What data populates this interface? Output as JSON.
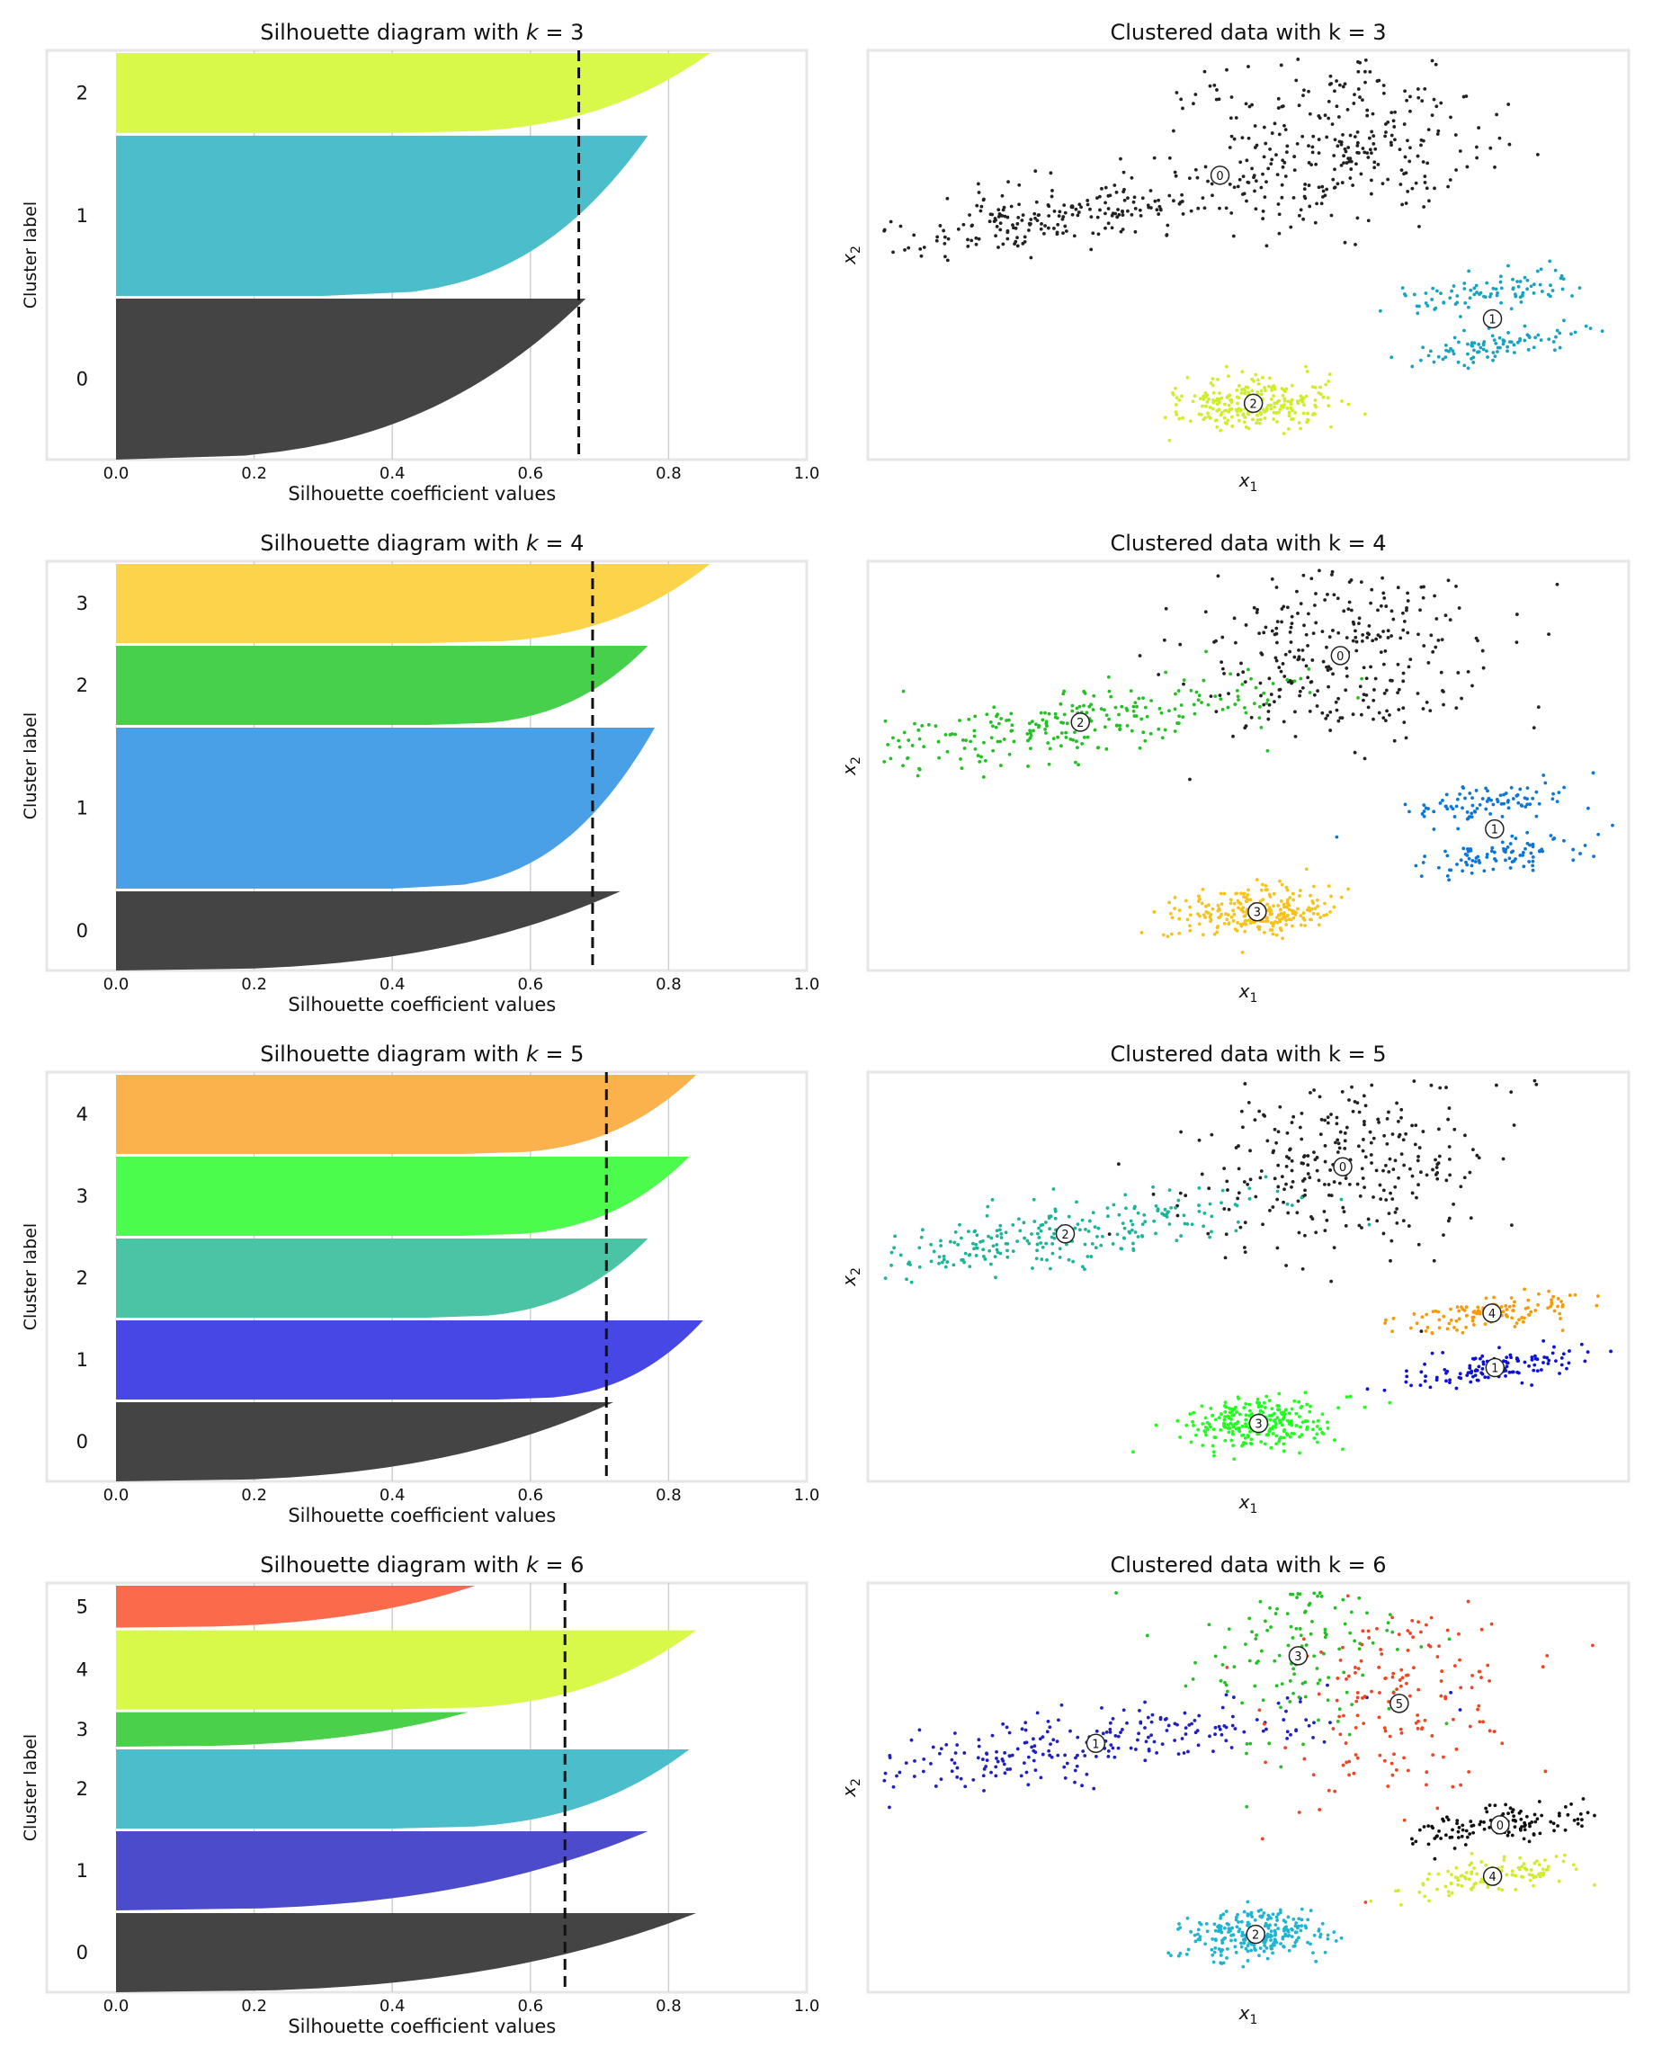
{
  "chart_data": [
    {
      "type": "area",
      "panel": "silhouette",
      "title": "Silhouette diagram with k = 3",
      "title_prefix": "Silhouette diagram with ",
      "title_k": "k",
      "title_suffix": " = 3",
      "xlabel": "Silhouette coefficient values",
      "ylabel": "Cluster label",
      "xlim": [
        -0.1,
        1.0
      ],
      "xticks": [
        0.0,
        0.2,
        0.4,
        0.6,
        0.8,
        1.0
      ],
      "xtick_labels": [
        "0.0",
        "0.2",
        "0.4",
        "0.6",
        "0.8",
        "1.0"
      ],
      "grid": true,
      "mean_silhouette": 0.67,
      "clusters": [
        {
          "label": "0",
          "size": 0.4,
          "max": 0.68,
          "min": 0.0,
          "color": "#444444"
        },
        {
          "label": "1",
          "size": 0.398,
          "max": 0.77,
          "min": 0.3,
          "color": "#4bbdcb"
        },
        {
          "label": "2",
          "size": 0.202,
          "max": 0.86,
          "min": 0.4,
          "color": "#d8f84a"
        }
      ]
    },
    {
      "type": "scatter",
      "panel": "clusters",
      "title": "Clustered data with k = 3",
      "xlabel": "x1",
      "ylabel": "x2",
      "xlabel_main": "x",
      "xlabel_sub": "1",
      "ylabel_main": "x",
      "ylabel_sub": "2",
      "xlim": [
        0,
        1
      ],
      "ylim": [
        0,
        1
      ],
      "groups": [
        {
          "label": "0",
          "color": "#222222",
          "blobs": [
            [
              0.25,
              0.6,
              0.4,
              0.04,
              0.16,
              0.03,
              260
            ],
            [
              0.62,
              0.78,
              0.27,
              0.12,
              0.1,
              0.05,
              300
            ]
          ]
        },
        {
          "label": "1",
          "color": "#17a2c2",
          "blobs": [
            [
              0.81,
              0.41,
              0.39,
              0.02,
              0.06,
              0.02,
              90
            ],
            [
              0.83,
              0.28,
              0.39,
              0.02,
              0.06,
              0.02,
              90
            ]
          ]
        },
        {
          "label": "2",
          "color": "#cfee2a",
          "blobs": [
            [
              0.51,
              0.14,
              0.14,
              0.03,
              0.05,
              0.03,
              260
            ]
          ]
        }
      ]
    },
    {
      "type": "area",
      "panel": "silhouette",
      "title": "Silhouette diagram with k = 4",
      "title_prefix": "Silhouette diagram with ",
      "title_k": "k",
      "title_suffix": " = 4",
      "xlabel": "Silhouette coefficient values",
      "ylabel": "Cluster label",
      "xlim": [
        -0.1,
        1.0
      ],
      "xticks": [
        0.0,
        0.2,
        0.4,
        0.6,
        0.8,
        1.0
      ],
      "xtick_labels": [
        "0.0",
        "0.2",
        "0.4",
        "0.6",
        "0.8",
        "1.0"
      ],
      "grid": true,
      "mean_silhouette": 0.69,
      "clusters": [
        {
          "label": "0",
          "size": 0.2,
          "max": 0.73,
          "min": 0.0,
          "color": "#444444"
        },
        {
          "label": "1",
          "size": 0.4,
          "max": 0.78,
          "min": 0.4,
          "color": "#4aa0e6"
        },
        {
          "label": "2",
          "size": 0.2,
          "max": 0.77,
          "min": 0.45,
          "color": "#46d04b"
        },
        {
          "label": "3",
          "size": 0.2,
          "max": 0.86,
          "min": 0.45,
          "color": "#fcd44c"
        }
      ]
    },
    {
      "type": "scatter",
      "panel": "clusters",
      "title": "Clustered data with k = 4",
      "xlabel": "x1",
      "ylabel": "x2",
      "xlabel_main": "x",
      "xlabel_sub": "1",
      "ylabel_main": "x",
      "ylabel_sub": "2",
      "xlim": [
        0,
        1
      ],
      "ylim": [
        0,
        1
      ],
      "groups": [
        {
          "label": "0",
          "color": "#222222",
          "blobs": [
            [
              0.62,
              0.78,
              0.27,
              0.12,
              0.1,
              0.05,
              300
            ]
          ]
        },
        {
          "label": "1",
          "color": "#0a76d8",
          "blobs": [
            [
              0.81,
              0.41,
              0.39,
              0.02,
              0.06,
              0.02,
              90
            ],
            [
              0.83,
              0.28,
              0.39,
              0.02,
              0.06,
              0.02,
              90
            ]
          ]
        },
        {
          "label": "2",
          "color": "#23c023",
          "blobs": [
            [
              0.25,
              0.6,
              0.4,
              0.04,
              0.16,
              0.03,
              260
            ]
          ]
        },
        {
          "label": "3",
          "color": "#f7c21d",
          "blobs": [
            [
              0.51,
              0.14,
              0.14,
              0.03,
              0.05,
              0.03,
              260
            ]
          ]
        }
      ]
    },
    {
      "type": "area",
      "panel": "silhouette",
      "title": "Silhouette diagram with k = 5",
      "title_prefix": "Silhouette diagram with ",
      "title_k": "k",
      "title_suffix": " = 5",
      "xlabel": "Silhouette coefficient values",
      "ylabel": "Cluster label",
      "xlim": [
        -0.1,
        1.0
      ],
      "xticks": [
        0.0,
        0.2,
        0.4,
        0.6,
        0.8,
        1.0
      ],
      "xtick_labels": [
        "0.0",
        "0.2",
        "0.4",
        "0.6",
        "0.8",
        "1.0"
      ],
      "grid": true,
      "mean_silhouette": 0.71,
      "clusters": [
        {
          "label": "0",
          "size": 0.2,
          "max": 0.72,
          "min": 0.0,
          "color": "#444444"
        },
        {
          "label": "1",
          "size": 0.2,
          "max": 0.85,
          "min": 0.55,
          "color": "#4747e6"
        },
        {
          "label": "2",
          "size": 0.2,
          "max": 0.77,
          "min": 0.45,
          "color": "#4bc4a5"
        },
        {
          "label": "3",
          "size": 0.2,
          "max": 0.83,
          "min": 0.5,
          "color": "#4cfc4c"
        },
        {
          "label": "4",
          "size": 0.2,
          "max": 0.84,
          "min": 0.5,
          "color": "#fcb24c"
        }
      ]
    },
    {
      "type": "scatter",
      "panel": "clusters",
      "title": "Clustered data with k = 5",
      "xlabel": "x1",
      "ylabel": "x2",
      "xlabel_main": "x",
      "xlabel_sub": "1",
      "ylabel_main": "x",
      "ylabel_sub": "2",
      "xlim": [
        0,
        1
      ],
      "ylim": [
        0,
        1
      ],
      "groups": [
        {
          "label": "0",
          "color": "#222222",
          "blobs": [
            [
              0.62,
              0.78,
              0.27,
              0.12,
              0.1,
              0.05,
              300
            ]
          ]
        },
        {
          "label": "1",
          "color": "#0c12d6",
          "blobs": [
            [
              0.83,
              0.28,
              0.39,
              0.02,
              0.06,
              0.02,
              120
            ]
          ]
        },
        {
          "label": "2",
          "color": "#1bb497",
          "blobs": [
            [
              0.25,
              0.6,
              0.4,
              0.04,
              0.16,
              0.03,
              260
            ]
          ]
        },
        {
          "label": "3",
          "color": "#1eff1e",
          "blobs": [
            [
              0.51,
              0.14,
              0.14,
              0.03,
              0.05,
              0.03,
              260
            ]
          ]
        },
        {
          "label": "4",
          "color": "#f59a0a",
          "blobs": [
            [
              0.81,
              0.41,
              0.39,
              0.02,
              0.06,
              0.02,
              120
            ]
          ]
        }
      ]
    },
    {
      "type": "area",
      "panel": "silhouette",
      "title": "Silhouette diagram with k = 6",
      "title_prefix": "Silhouette diagram with ",
      "title_k": "k",
      "title_suffix": " = 6",
      "xlabel": "Silhouette coefficient values",
      "ylabel": "Cluster label",
      "xlim": [
        -0.1,
        1.0
      ],
      "xticks": [
        0.0,
        0.2,
        0.4,
        0.6,
        0.8,
        1.0
      ],
      "xtick_labels": [
        "0.0",
        "0.2",
        "0.4",
        "0.6",
        "0.8",
        "1.0"
      ],
      "grid": true,
      "mean_silhouette": 0.65,
      "clusters": [
        {
          "label": "0",
          "size": 0.2,
          "max": 0.84,
          "min": 0.0,
          "color": "#444444"
        },
        {
          "label": "1",
          "size": 0.2,
          "max": 0.77,
          "min": 0.0,
          "color": "#4b4bcb"
        },
        {
          "label": "2",
          "size": 0.2,
          "max": 0.83,
          "min": 0.4,
          "color": "#4bbdcb"
        },
        {
          "label": "3",
          "size": 0.091,
          "max": 0.51,
          "min": 0.0,
          "color": "#4bd04b"
        },
        {
          "label": "4",
          "size": 0.2,
          "max": 0.84,
          "min": 0.4,
          "color": "#d8f84a"
        },
        {
          "label": "5",
          "size": 0.109,
          "max": 0.52,
          "min": 0.0,
          "color": "#fc6a4c"
        }
      ]
    },
    {
      "type": "scatter",
      "panel": "clusters",
      "title": "Clustered data with k = 6",
      "xlabel": "x1",
      "ylabel": "x2",
      "xlabel_main": "x",
      "xlabel_sub": "1",
      "ylabel_main": "x",
      "ylabel_sub": "2",
      "xlim": [
        0,
        1
      ],
      "ylim": [
        0,
        1
      ],
      "groups": [
        {
          "label": "0",
          "color": "#111111",
          "blobs": [
            [
              0.83,
              0.41,
              0.39,
              0.02,
              0.06,
              0.02,
              120
            ]
          ]
        },
        {
          "label": "1",
          "color": "#2020c0",
          "blobs": [
            [
              0.25,
              0.6,
              0.4,
              0.04,
              0.16,
              0.03,
              260
            ]
          ]
        },
        {
          "label": "2",
          "color": "#20b4d0",
          "blobs": [
            [
              0.51,
              0.14,
              0.14,
              0.03,
              0.05,
              0.03,
              260
            ]
          ]
        },
        {
          "label": "3",
          "color": "#23c023",
          "blobs": [
            [
              0.57,
              0.87,
              0.22,
              0.12,
              0.07,
              0.05,
              150
            ]
          ]
        },
        {
          "label": "4",
          "color": "#cfee2a",
          "blobs": [
            [
              0.82,
              0.28,
              0.39,
              0.02,
              0.06,
              0.02,
              120
            ]
          ]
        },
        {
          "label": "5",
          "color": "#f04422",
          "blobs": [
            [
              0.7,
              0.71,
              0.27,
              0.12,
              0.08,
              0.05,
              160
            ]
          ]
        }
      ]
    }
  ]
}
